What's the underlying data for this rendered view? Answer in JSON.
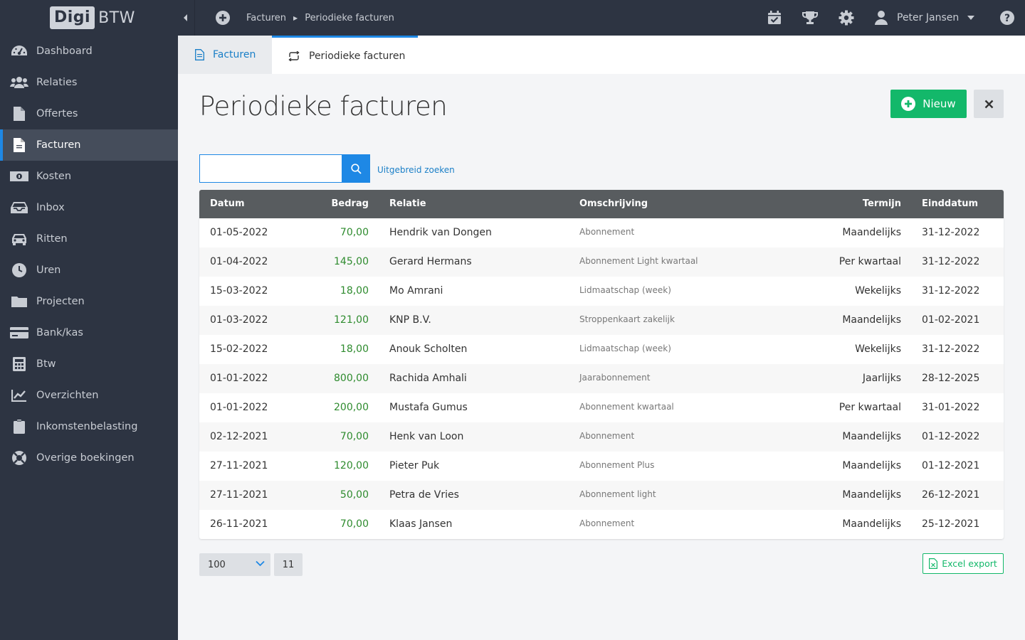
{
  "app": {
    "logo_box": "Digi",
    "logo_text": "BTW"
  },
  "breadcrumb": {
    "items": [
      "Facturen",
      "Periodieke facturen"
    ]
  },
  "user": {
    "name": "Peter Jansen"
  },
  "sidebar": {
    "items": [
      {
        "label": "Dashboard",
        "icon": "dashboard-icon"
      },
      {
        "label": "Relaties",
        "icon": "users-icon"
      },
      {
        "label": "Offertes",
        "icon": "document-icon"
      },
      {
        "label": "Facturen",
        "icon": "invoice-icon",
        "active": true
      },
      {
        "label": "Kosten",
        "icon": "money-icon"
      },
      {
        "label": "Inbox",
        "icon": "inbox-icon"
      },
      {
        "label": "Ritten",
        "icon": "car-icon"
      },
      {
        "label": "Uren",
        "icon": "clock-icon"
      },
      {
        "label": "Projecten",
        "icon": "folder-icon"
      },
      {
        "label": "Bank/kas",
        "icon": "card-icon"
      },
      {
        "label": "Btw",
        "icon": "calculator-icon"
      },
      {
        "label": "Overzichten",
        "icon": "chart-icon"
      },
      {
        "label": "Inkomstenbelasting",
        "icon": "clipboard-icon"
      },
      {
        "label": "Overige boekingen",
        "icon": "life-ring-icon"
      }
    ]
  },
  "tabs": {
    "facturen": "Facturen",
    "periodiek": "Periodieke facturen"
  },
  "page": {
    "title": "Periodieke facturen",
    "new_label": "Nieuw",
    "advanced_search": "Uitgebreid zoeken",
    "search_value": ""
  },
  "table": {
    "headers": {
      "datum": "Datum",
      "bedrag": "Bedrag",
      "relatie": "Relatie",
      "omschrijving": "Omschrijving",
      "termijn": "Termijn",
      "einddatum": "Einddatum"
    },
    "rows": [
      {
        "datum": "01-05-2022",
        "bedrag": "70,00",
        "relatie": "Hendrik van Dongen",
        "omschrijving": "Abonnement",
        "termijn": "Maandelijks",
        "einddatum": "31-12-2022"
      },
      {
        "datum": "01-04-2022",
        "bedrag": "145,00",
        "relatie": "Gerard Hermans",
        "omschrijving": "Abonnement Light kwartaal",
        "termijn": "Per kwartaal",
        "einddatum": "31-12-2022"
      },
      {
        "datum": "15-03-2022",
        "bedrag": "18,00",
        "relatie": "Mo Amrani",
        "omschrijving": "Lidmaatschap (week)",
        "termijn": "Wekelijks",
        "einddatum": "31-12-2022"
      },
      {
        "datum": "01-03-2022",
        "bedrag": "121,00",
        "relatie": "KNP B.V.",
        "omschrijving": "Stroppenkaart zakelijk",
        "termijn": "Maandelijks",
        "einddatum": "01-02-2021"
      },
      {
        "datum": "15-02-2022",
        "bedrag": "18,00",
        "relatie": "Anouk Scholten",
        "omschrijving": "Lidmaatschap (week)",
        "termijn": "Wekelijks",
        "einddatum": "31-12-2022"
      },
      {
        "datum": "01-01-2022",
        "bedrag": "800,00",
        "relatie": "Rachida Amhali",
        "omschrijving": "Jaarabonnement",
        "termijn": "Jaarlijks",
        "einddatum": "28-12-2025"
      },
      {
        "datum": "01-01-2022",
        "bedrag": "200,00",
        "relatie": "Mustafa Gumus",
        "omschrijving": "Abonnement kwartaal",
        "termijn": "Per kwartaal",
        "einddatum": "31-01-2022"
      },
      {
        "datum": "02-12-2021",
        "bedrag": "70,00",
        "relatie": "Henk van Loon",
        "omschrijving": "Abonnement",
        "termijn": "Maandelijks",
        "einddatum": "01-12-2022"
      },
      {
        "datum": "27-11-2021",
        "bedrag": "120,00",
        "relatie": "Pieter Puk",
        "omschrijving": "Abonnement Plus",
        "termijn": "Maandelijks",
        "einddatum": "01-12-2021"
      },
      {
        "datum": "27-11-2021",
        "bedrag": "50,00",
        "relatie": "Petra de Vries",
        "omschrijving": "Abonnement light",
        "termijn": "Maandelijks",
        "einddatum": "26-12-2021"
      },
      {
        "datum": "26-11-2021",
        "bedrag": "70,00",
        "relatie": "Klaas Jansen",
        "omschrijving": "Abonnement",
        "termijn": "Maandelijks",
        "einddatum": "25-12-2021"
      }
    ]
  },
  "pager": {
    "page_size": "100",
    "count": "11"
  },
  "export": {
    "label": "Excel export"
  },
  "colors": {
    "sidebar_bg": "#2d3442",
    "accent": "#1e88e5",
    "green": "#13b86a",
    "amount_green": "#2e8b2e",
    "header_bg": "#585c5f"
  }
}
